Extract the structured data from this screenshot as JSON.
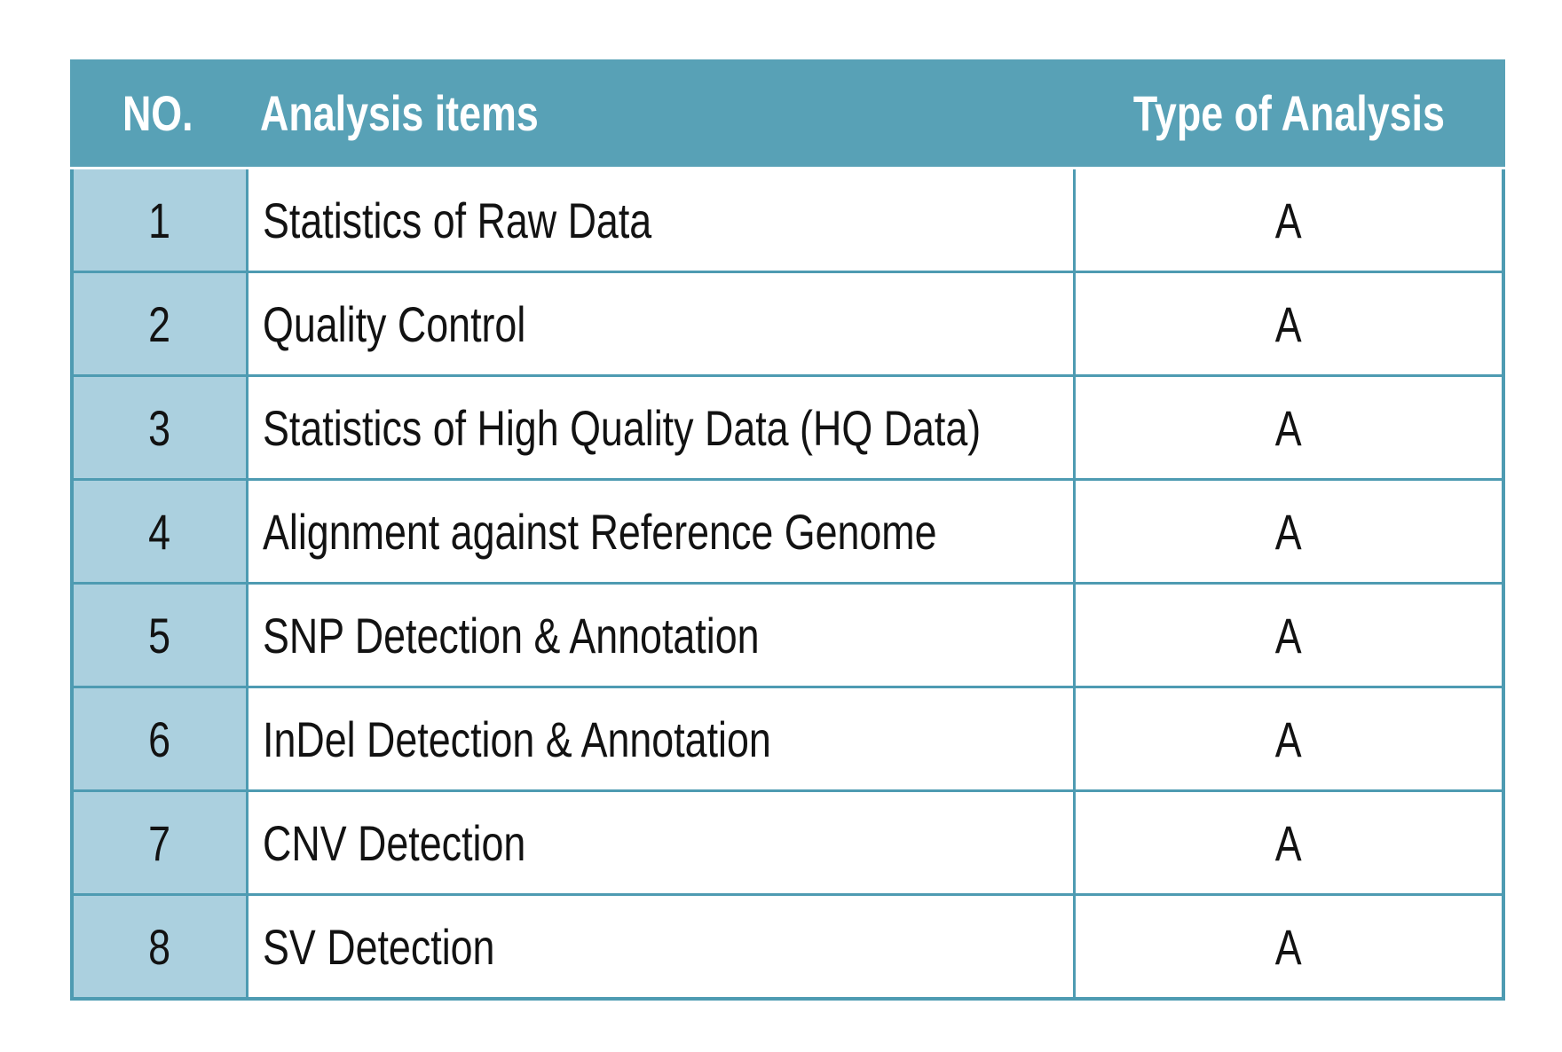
{
  "table": {
    "columns": [
      {
        "label": "NO."
      },
      {
        "label": "Analysis items"
      },
      {
        "label": "Type of Analysis"
      }
    ],
    "rows": [
      {
        "no": "1",
        "item": "Statistics of Raw Data",
        "type": "A"
      },
      {
        "no": "2",
        "item": "Quality Control",
        "type": "A"
      },
      {
        "no": "3",
        "item": "Statistics of High Quality Data (HQ Data)",
        "type": "A"
      },
      {
        "no": "4",
        "item": "Alignment against Reference Genome",
        "type": "A"
      },
      {
        "no": "5",
        "item": "SNP Detection & Annotation",
        "type": "A"
      },
      {
        "no": "6",
        "item": "InDel Detection & Annotation",
        "type": "A"
      },
      {
        "no": "7",
        "item": "CNV Detection",
        "type": "A"
      },
      {
        "no": "8",
        "item": "SV Detection",
        "type": "A"
      }
    ]
  },
  "colors": {
    "header_bg": "#58a1b6",
    "header_text": "#ffffff",
    "border": "#4e9bb2",
    "row_number_bg": "#abd0df",
    "body_text": "#121212",
    "page_bg": "#ffffff"
  }
}
